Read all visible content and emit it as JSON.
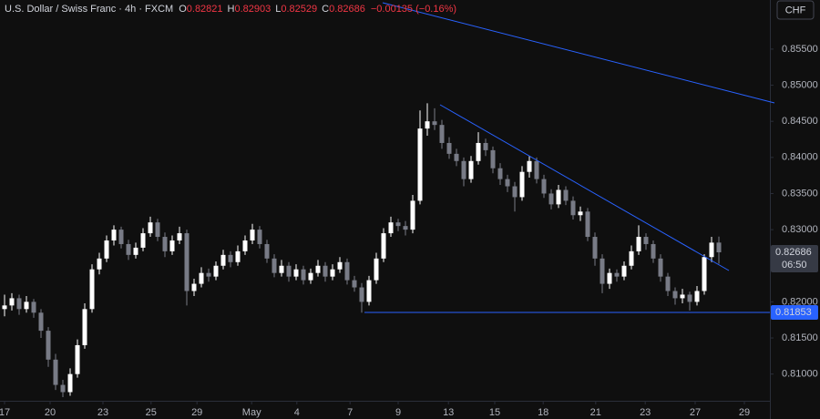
{
  "chart_data": {
    "type": "candlestick",
    "title": "U.S. Dollar / Swiss Franc · 4h · FXCM",
    "ohlc_letters": [
      "O",
      "H",
      "L",
      "C"
    ],
    "change": "−0.00135 (−0.16%)",
    "currency_button": "CHF",
    "countdown": "06:50",
    "support": 0.81853,
    "up_color": "#ffffff",
    "down_color": "#787b86",
    "ylim": [
      0.8063,
      0.8618
    ],
    "yticks": [
      {
        "value": 0.81,
        "label": "0.81000"
      },
      {
        "value": 0.815,
        "label": "0.81500"
      },
      {
        "value": 0.82,
        "label": "0.82000"
      },
      {
        "value": 0.825,
        "label": "0.82500"
      },
      {
        "value": 0.83,
        "label": "0.83000"
      },
      {
        "value": 0.835,
        "label": "0.83500"
      },
      {
        "value": 0.84,
        "label": "0.84000"
      },
      {
        "value": 0.845,
        "label": "0.84500"
      },
      {
        "value": 0.85,
        "label": "0.85000"
      },
      {
        "value": 0.855,
        "label": "0.85500"
      }
    ],
    "xlim": [
      -0.625,
      105
    ],
    "xticks": [
      {
        "value": 0,
        "label": "17"
      },
      {
        "value": 6.25,
        "label": "20"
      },
      {
        "value": 13.5,
        "label": "23"
      },
      {
        "value": 20.1,
        "label": "25"
      },
      {
        "value": 26.4,
        "label": "29"
      },
      {
        "value": 33.9,
        "label": "May"
      },
      {
        "value": 40.1,
        "label": "4"
      },
      {
        "value": 47.4,
        "label": "7"
      },
      {
        "value": 54,
        "label": "9"
      },
      {
        "value": 60.9,
        "label": "13"
      },
      {
        "value": 67.25,
        "label": "15"
      },
      {
        "value": 73.9,
        "label": "18"
      },
      {
        "value": 81.1,
        "label": "21"
      },
      {
        "value": 87.9,
        "label": "23"
      },
      {
        "value": 94.75,
        "label": "27"
      },
      {
        "value": 101.5,
        "label": "29"
      }
    ],
    "ohlc": [
      [
        0.819,
        0.821,
        0.818,
        0.8195
      ],
      [
        0.8195,
        0.8212,
        0.8188,
        0.8205
      ],
      [
        0.8205,
        0.821,
        0.8182,
        0.819
      ],
      [
        0.819,
        0.8208,
        0.8185,
        0.82
      ],
      [
        0.82,
        0.8204,
        0.8178,
        0.8185
      ],
      [
        0.8185,
        0.819,
        0.815,
        0.816
      ],
      [
        0.816,
        0.8165,
        0.811,
        0.812
      ],
      [
        0.812,
        0.8128,
        0.8078,
        0.8085
      ],
      [
        0.8085,
        0.8092,
        0.8068,
        0.8075
      ],
      [
        0.8075,
        0.8108,
        0.807,
        0.81
      ],
      [
        0.81,
        0.8148,
        0.8095,
        0.814
      ],
      [
        0.814,
        0.8198,
        0.8135,
        0.819
      ],
      [
        0.819,
        0.8252,
        0.8185,
        0.8245
      ],
      [
        0.8245,
        0.8268,
        0.8238,
        0.826
      ],
      [
        0.826,
        0.8292,
        0.8255,
        0.8285
      ],
      [
        0.8285,
        0.8306,
        0.8278,
        0.83
      ],
      [
        0.83,
        0.8304,
        0.8274,
        0.828
      ],
      [
        0.828,
        0.8286,
        0.8258,
        0.8265
      ],
      [
        0.8265,
        0.8282,
        0.826,
        0.8275
      ],
      [
        0.8275,
        0.8302,
        0.827,
        0.8295
      ],
      [
        0.8295,
        0.8318,
        0.829,
        0.831
      ],
      [
        0.831,
        0.8315,
        0.8284,
        0.829
      ],
      [
        0.829,
        0.8296,
        0.8262,
        0.827
      ],
      [
        0.827,
        0.8292,
        0.8265,
        0.8285
      ],
      [
        0.8285,
        0.8304,
        0.828,
        0.8295
      ],
      [
        0.8295,
        0.83,
        0.8195,
        0.8215
      ],
      [
        0.8215,
        0.8232,
        0.8208,
        0.8225
      ],
      [
        0.8225,
        0.8248,
        0.822,
        0.824
      ],
      [
        0.824,
        0.8246,
        0.8228,
        0.8235
      ],
      [
        0.8235,
        0.8256,
        0.823,
        0.825
      ],
      [
        0.825,
        0.8272,
        0.8245,
        0.8265
      ],
      [
        0.8265,
        0.827,
        0.8248,
        0.8255
      ],
      [
        0.8255,
        0.8278,
        0.825,
        0.827
      ],
      [
        0.827,
        0.8292,
        0.8265,
        0.8285
      ],
      [
        0.8285,
        0.8308,
        0.828,
        0.83
      ],
      [
        0.83,
        0.8305,
        0.8274,
        0.828
      ],
      [
        0.828,
        0.8286,
        0.8254,
        0.826
      ],
      [
        0.826,
        0.8266,
        0.8234,
        0.824
      ],
      [
        0.824,
        0.8258,
        0.8235,
        0.825
      ],
      [
        0.825,
        0.8255,
        0.8228,
        0.8235
      ],
      [
        0.8235,
        0.8252,
        0.823,
        0.8245
      ],
      [
        0.8245,
        0.825,
        0.8224,
        0.823
      ],
      [
        0.823,
        0.8246,
        0.8225,
        0.824
      ],
      [
        0.824,
        0.8258,
        0.8235,
        0.825
      ],
      [
        0.825,
        0.8255,
        0.8228,
        0.8235
      ],
      [
        0.8235,
        0.8252,
        0.823,
        0.8245
      ],
      [
        0.8245,
        0.8262,
        0.824,
        0.8255
      ],
      [
        0.8255,
        0.826,
        0.8224,
        0.823
      ],
      [
        0.823,
        0.8236,
        0.8214,
        0.822
      ],
      [
        0.822,
        0.8226,
        0.8185,
        0.82
      ],
      [
        0.82,
        0.8236,
        0.8195,
        0.823
      ],
      [
        0.823,
        0.8268,
        0.8225,
        0.826
      ],
      [
        0.826,
        0.8302,
        0.8255,
        0.8295
      ],
      [
        0.8295,
        0.8318,
        0.829,
        0.831
      ],
      [
        0.831,
        0.8315,
        0.8298,
        0.8305
      ],
      [
        0.8305,
        0.8312,
        0.8292,
        0.83
      ],
      [
        0.83,
        0.8348,
        0.8295,
        0.834
      ],
      [
        0.834,
        0.8465,
        0.8335,
        0.844
      ],
      [
        0.844,
        0.8475,
        0.843,
        0.845
      ],
      [
        0.845,
        0.8468,
        0.8438,
        0.8445
      ],
      [
        0.8445,
        0.8452,
        0.8412,
        0.842
      ],
      [
        0.842,
        0.8428,
        0.8398,
        0.8405
      ],
      [
        0.8405,
        0.8412,
        0.8388,
        0.8395
      ],
      [
        0.8395,
        0.84,
        0.836,
        0.837
      ],
      [
        0.837,
        0.8402,
        0.8365,
        0.8395
      ],
      [
        0.8395,
        0.8435,
        0.839,
        0.842
      ],
      [
        0.842,
        0.8426,
        0.8402,
        0.841
      ],
      [
        0.841,
        0.8415,
        0.8378,
        0.8385
      ],
      [
        0.8385,
        0.8392,
        0.8362,
        0.837
      ],
      [
        0.837,
        0.8376,
        0.8352,
        0.836
      ],
      [
        0.836,
        0.8366,
        0.8325,
        0.8345
      ],
      [
        0.8345,
        0.8388,
        0.834,
        0.838
      ],
      [
        0.838,
        0.8402,
        0.8372,
        0.8395
      ],
      [
        0.8395,
        0.84,
        0.8364,
        0.837
      ],
      [
        0.837,
        0.8376,
        0.8344,
        0.835
      ],
      [
        0.835,
        0.8356,
        0.8328,
        0.8335
      ],
      [
        0.8335,
        0.8362,
        0.833,
        0.8355
      ],
      [
        0.8355,
        0.836,
        0.8334,
        0.834
      ],
      [
        0.834,
        0.8346,
        0.8314,
        0.832
      ],
      [
        0.832,
        0.8332,
        0.8312,
        0.8325
      ],
      [
        0.8325,
        0.833,
        0.8284,
        0.829
      ],
      [
        0.829,
        0.8296,
        0.825,
        0.826
      ],
      [
        0.826,
        0.8266,
        0.8212,
        0.8225
      ],
      [
        0.8225,
        0.8246,
        0.8218,
        0.824
      ],
      [
        0.824,
        0.8245,
        0.8228,
        0.8235
      ],
      [
        0.8235,
        0.8256,
        0.823,
        0.825
      ],
      [
        0.825,
        0.8278,
        0.8245,
        0.827
      ],
      [
        0.827,
        0.8306,
        0.8265,
        0.829
      ],
      [
        0.829,
        0.8295,
        0.8272,
        0.828
      ],
      [
        0.828,
        0.8285,
        0.8254,
        0.826
      ],
      [
        0.826,
        0.8266,
        0.8228,
        0.8235
      ],
      [
        0.8235,
        0.824,
        0.8208,
        0.8215
      ],
      [
        0.8215,
        0.822,
        0.8196,
        0.8205
      ],
      [
        0.8205,
        0.8218,
        0.8198,
        0.821
      ],
      [
        0.821,
        0.8214,
        0.8188,
        0.82
      ],
      [
        0.82,
        0.8222,
        0.8195,
        0.8215
      ],
      [
        0.8215,
        0.8266,
        0.821,
        0.8262
      ],
      [
        0.8262,
        0.829,
        0.8255,
        0.8282
      ],
      [
        0.82821,
        0.82903,
        0.82529,
        0.82686
      ]
    ]
  }
}
